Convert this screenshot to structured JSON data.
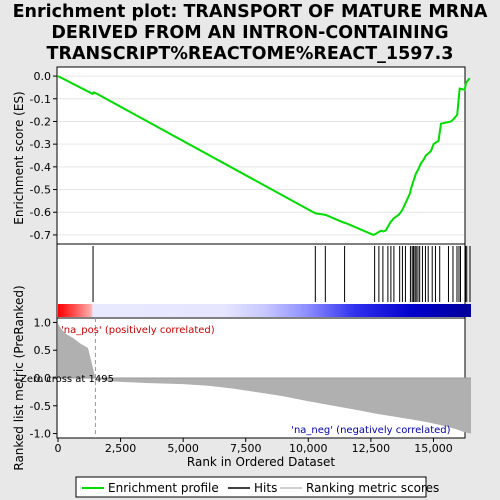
{
  "title_lines": [
    "Enrichment plot: TRANSPORT OF MATURE MRNA",
    "DERIVED FROM AN INTRON-CONTAINING",
    "TRANSCRIPT%REACTOME%REACT_1597.3"
  ],
  "chart_data": [
    {
      "type": "line",
      "name": "enrichment-score-panel",
      "ylabel": "Enrichment score (ES)",
      "xlim": [
        0,
        16500
      ],
      "ylim": [
        -0.74,
        0.04
      ],
      "yticks": [
        0.0,
        -0.1,
        -0.2,
        -0.3,
        -0.4,
        -0.5,
        -0.6,
        -0.7
      ],
      "ytick_labels": [
        "0.0",
        "-0.1",
        "-0.2",
        "-0.3",
        "-0.4",
        "-0.5",
        "-0.6",
        "-0.7"
      ],
      "series": [
        {
          "name": "Enrichment profile",
          "color": "#00dd00",
          "x": [
            0,
            1380,
            1420,
            1520,
            10200,
            10300,
            10600,
            10700,
            11400,
            11500,
            12600,
            12700,
            12800,
            12900,
            13000,
            13100,
            13200,
            13300,
            13350,
            13400,
            13600,
            13700,
            13800,
            14050,
            14120,
            14180,
            14240,
            14300,
            14350,
            14400,
            14500,
            14600,
            14700,
            14900,
            15000,
            15200,
            15300,
            15700,
            15800,
            15950,
            16000,
            16050,
            16250,
            16300,
            16450
          ],
          "y": [
            0.0,
            -0.078,
            -0.072,
            -0.076,
            -0.6,
            -0.605,
            -0.61,
            -0.612,
            -0.645,
            -0.648,
            -0.7,
            -0.695,
            -0.688,
            -0.682,
            -0.685,
            -0.68,
            -0.66,
            -0.64,
            -0.636,
            -0.628,
            -0.612,
            -0.6,
            -0.58,
            -0.52,
            -0.49,
            -0.47,
            -0.45,
            -0.43,
            -0.42,
            -0.41,
            -0.385,
            -0.37,
            -0.35,
            -0.33,
            -0.3,
            -0.285,
            -0.21,
            -0.2,
            -0.19,
            -0.17,
            -0.11,
            -0.055,
            -0.06,
            -0.03,
            -0.01
          ]
        }
      ]
    },
    {
      "type": "scatter",
      "name": "hits-panel",
      "xlim": [
        0,
        16500
      ],
      "hit_positions": [
        1400,
        10280,
        10680,
        11450,
        12650,
        12820,
        12980,
        13180,
        13300,
        13420,
        13650,
        13760,
        13880,
        14080,
        14150,
        14200,
        14260,
        14310,
        14380,
        14450,
        14560,
        14680,
        14790,
        14950,
        15080,
        15250,
        15600,
        15780,
        15940,
        16020,
        16080,
        16280,
        16330,
        16460
      ],
      "legend": [
        "Enrichment profile",
        "Hits",
        "Ranking metric scores"
      ]
    },
    {
      "type": "area",
      "name": "ranked-list-panel",
      "xlabel": "Rank in Ordered Dataset",
      "ylabel": "Ranked list metric (PreRanked)",
      "xlim": [
        0,
        16500
      ],
      "ylim": [
        -1.08,
        1.08
      ],
      "xticks": [
        0,
        2500,
        5000,
        7500,
        10000,
        12500,
        15000
      ],
      "xtick_labels": [
        "0",
        "2,500",
        "5,000",
        "7,500",
        "10,000",
        "12,500",
        "15,000"
      ],
      "yticks": [
        1.0,
        0.5,
        0.0,
        -0.5,
        -1.0
      ],
      "ytick_labels": [
        "1.0",
        "0.5",
        "0.0",
        "-0.5",
        "-1.0"
      ],
      "zero_cross": 1495,
      "zero_cross_label": "Zero cross at 1495",
      "pos_label": "'na_pos' (positively correlated)",
      "neg_label": "'na_neg' (negatively correlated)",
      "pos_color": "#ff0000",
      "neg_color": "#0000cc",
      "x": [
        0,
        100,
        300,
        600,
        900,
        1200,
        1495,
        2000,
        3500,
        5000,
        6000,
        7000,
        8000,
        9000,
        10000,
        11000,
        12000,
        12800,
        13500,
        14200,
        14800,
        15400,
        15900,
        16200,
        16500
      ],
      "values": [
        0.98,
        0.9,
        0.8,
        0.72,
        0.62,
        0.54,
        0.0,
        -0.06,
        -0.09,
        -0.11,
        -0.14,
        -0.19,
        -0.26,
        -0.33,
        -0.42,
        -0.5,
        -0.58,
        -0.65,
        -0.7,
        -0.75,
        -0.8,
        -0.86,
        -0.92,
        -0.97,
        -1.0
      ]
    }
  ]
}
